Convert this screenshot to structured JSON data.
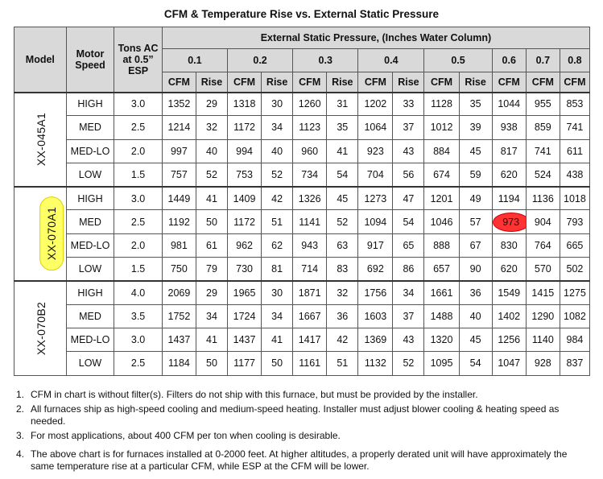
{
  "title": "CFM & Temperature Rise vs. External Static Pressure",
  "headers": {
    "model": "Model",
    "motor_speed": "Motor Speed",
    "tons": "Tons AC at 0.5” ESP",
    "esp": "External Static Pressure, (Inches Water Column)",
    "pressures": [
      "0.1",
      "0.2",
      "0.3",
      "0.4",
      "0.5",
      "0.6",
      "0.7",
      "0.8"
    ],
    "cfm": "CFM",
    "rise": "Rise"
  },
  "groups": [
    {
      "model": "XX-045A1",
      "rows": [
        {
          "speed": "HIGH",
          "tons": "3.0",
          "v": [
            "1352",
            "29",
            "1318",
            "30",
            "1260",
            "31",
            "1202",
            "33",
            "1128",
            "35",
            "1044",
            "955",
            "853"
          ]
        },
        {
          "speed": "MED",
          "tons": "2.5",
          "v": [
            "1214",
            "32",
            "1172",
            "34",
            "1123",
            "35",
            "1064",
            "37",
            "1012",
            "39",
            "938",
            "859",
            "741"
          ]
        },
        {
          "speed": "MED-LO",
          "tons": "2.0",
          "v": [
            "997",
            "40",
            "994",
            "40",
            "960",
            "41",
            "923",
            "43",
            "884",
            "45",
            "817",
            "741",
            "611"
          ]
        },
        {
          "speed": "LOW",
          "tons": "1.5",
          "v": [
            "757",
            "52",
            "753",
            "52",
            "734",
            "54",
            "704",
            "56",
            "674",
            "59",
            "620",
            "524",
            "438"
          ]
        }
      ]
    },
    {
      "model": "XX-070A1",
      "rows": [
        {
          "speed": "HIGH",
          "tons": "3.0",
          "v": [
            "1449",
            "41",
            "1409",
            "42",
            "1326",
            "45",
            "1273",
            "47",
            "1201",
            "49",
            "1194",
            "1136",
            "1018"
          ]
        },
        {
          "speed": "MED",
          "tons": "2.5",
          "v": [
            "1192",
            "50",
            "1172",
            "51",
            "1141",
            "52",
            "1094",
            "54",
            "1046",
            "57",
            "973",
            "904",
            "793"
          ]
        },
        {
          "speed": "MED-LO",
          "tons": "2.0",
          "v": [
            "981",
            "61",
            "962",
            "62",
            "943",
            "63",
            "917",
            "65",
            "888",
            "67",
            "830",
            "764",
            "665"
          ]
        },
        {
          "speed": "LOW",
          "tons": "1.5",
          "v": [
            "750",
            "79",
            "730",
            "81",
            "714",
            "83",
            "692",
            "86",
            "657",
            "90",
            "620",
            "570",
            "502"
          ]
        }
      ]
    },
    {
      "model": "XX-070B2",
      "rows": [
        {
          "speed": "HIGH",
          "tons": "4.0",
          "v": [
            "2069",
            "29",
            "1965",
            "30",
            "1871",
            "32",
            "1756",
            "34",
            "1661",
            "36",
            "1549",
            "1415",
            "1275"
          ]
        },
        {
          "speed": "MED",
          "tons": "3.5",
          "v": [
            "1752",
            "34",
            "1724",
            "34",
            "1667",
            "36",
            "1603",
            "37",
            "1488",
            "40",
            "1402",
            "1290",
            "1082"
          ]
        },
        {
          "speed": "MED-LO",
          "tons": "3.0",
          "v": [
            "1437",
            "41",
            "1437",
            "41",
            "1417",
            "42",
            "1369",
            "43",
            "1320",
            "45",
            "1256",
            "1140",
            "984"
          ]
        },
        {
          "speed": "LOW",
          "tons": "2.5",
          "v": [
            "1184",
            "50",
            "1177",
            "50",
            "1161",
            "51",
            "1132",
            "52",
            "1095",
            "54",
            "1047",
            "928",
            "837"
          ]
        }
      ]
    }
  ],
  "highlights": {
    "model_highlight_color": "#ffff66",
    "cell_highlight_color": "#ff3333"
  },
  "notes": [
    {
      "num": "1.",
      "text": "CFM in chart is without filter(s). Filters do not ship with this furnace, but must be provided by the installer."
    },
    {
      "num": "2.",
      "text": "All furnaces ship as high-speed cooling and medium-speed heating. Installer must adjust blower cooling & heating speed as needed."
    },
    {
      "num": "3.",
      "text": "For most applications, about 400 CFM per ton when cooling is desirable."
    },
    {
      "num": "4.",
      "text": "The above chart is for furnaces installed at 0-2000 feet. At higher altitudes, a properly derated unit will have approximately the same temperature rise at a particular CFM, while ESP at the CFM will be lower."
    }
  ]
}
